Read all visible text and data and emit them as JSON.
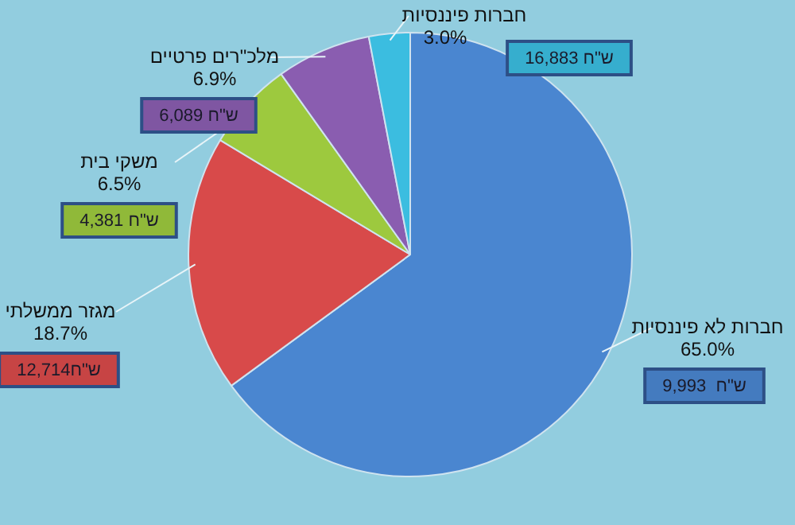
{
  "chart_data": {
    "type": "pie",
    "categories": [
      "חברות לא פיננסיות",
      "מגזר ממשלתי",
      "משקי בית",
      "מלכ\"רים פרטיים",
      "חברות פיננסיות"
    ],
    "values": [
      65.0,
      18.7,
      6.5,
      6.9,
      3.0
    ],
    "value_labels": [
      "65.0%",
      "18.7%",
      "6.5%",
      "6.9%",
      "3.0%"
    ],
    "colors": [
      "#4a86d0",
      "#d84a4a",
      "#9dc93e",
      "#8a5db0",
      "#3bbde0"
    ],
    "annotations": [
      "9,993  ש\"ח",
      "12,714ש\"ח",
      "4,381 ש\"ח",
      "6,089 ש\"ח",
      "16,883 ש\"ח"
    ],
    "legend": false
  }
}
